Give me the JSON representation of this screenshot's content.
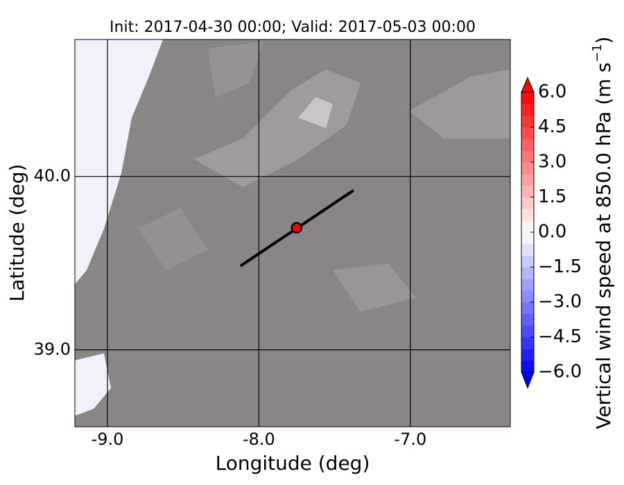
{
  "chart_data": {
    "type": "map",
    "title": "Init: 2017-04-30 00:00; Valid: 2017-05-03 00:00",
    "xlabel": "Longitude (deg)",
    "ylabel": "Latitude (deg)",
    "xlim": [
      -9.215,
      -6.34
    ],
    "ylim": [
      38.556,
      40.79
    ],
    "xticks": [
      {
        "value": -9,
        "label": "-9.0"
      },
      {
        "value": -8,
        "label": "-8.0"
      },
      {
        "value": -7,
        "label": "-7.0"
      }
    ],
    "yticks": [
      {
        "value": 39,
        "label": "39.0"
      },
      {
        "value": 40,
        "label": "40.0"
      }
    ],
    "grid": true,
    "transect": {
      "x": [
        -8.121,
        -7.375
      ],
      "y": [
        39.484,
        39.92
      ],
      "color": "#000000"
    },
    "point": {
      "x": -7.751,
      "y": 39.704,
      "color": "#ff0000"
    },
    "colorbar": {
      "label": "Vertical wind speed at 850.0 hPa (m s",
      "label_exp": "−1",
      "label_end": ")",
      "lim": [
        -6,
        6
      ],
      "low_color": "#0000ff",
      "mid_color": "#ffffff",
      "high_color": "#ff0000",
      "ticks": [
        {
          "value": 6,
          "label": "6.0"
        },
        {
          "value": 4.5,
          "label": "4.5"
        },
        {
          "value": 3,
          "label": "3.0"
        },
        {
          "value": 1.5,
          "label": "1.5"
        },
        {
          "value": 0,
          "label": "0.0"
        },
        {
          "value": -1.5,
          "label": "−1.5"
        },
        {
          "value": -3,
          "label": "−3.0"
        },
        {
          "value": -4.5,
          "label": "−4.5"
        },
        {
          "value": -6,
          "label": "−6.0"
        }
      ]
    }
  }
}
